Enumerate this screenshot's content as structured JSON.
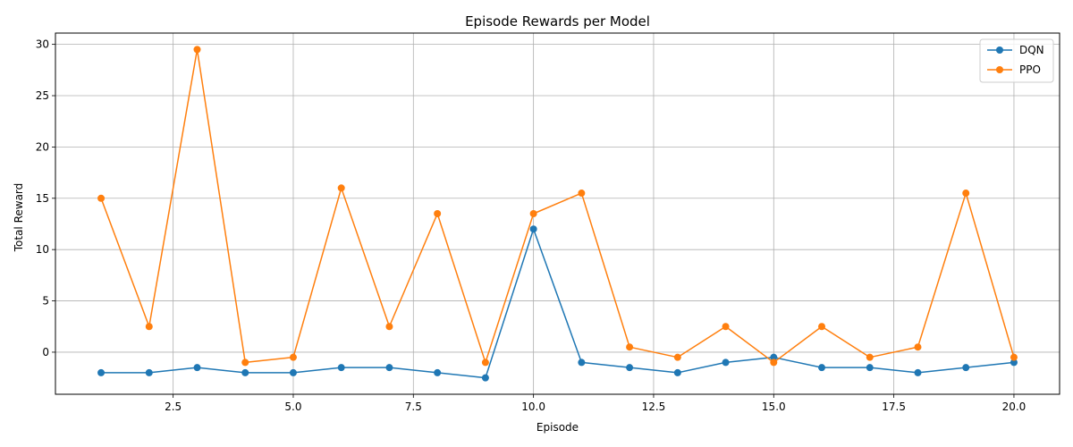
{
  "chart_data": {
    "type": "line",
    "title": "Episode Rewards per Model",
    "xlabel": "Episode",
    "ylabel": "Total Reward",
    "xlim": [
      0.05,
      20.95
    ],
    "ylim": [
      -4.1,
      31.1
    ],
    "xticks": [
      2.5,
      5.0,
      7.5,
      10.0,
      12.5,
      15.0,
      17.5,
      20.0
    ],
    "xtick_labels": [
      "2.5",
      "5.0",
      "7.5",
      "10.0",
      "12.5",
      "15.0",
      "17.5",
      "20.0"
    ],
    "yticks": [
      0,
      5,
      10,
      15,
      20,
      25,
      30
    ],
    "ytick_labels": [
      "0",
      "5",
      "10",
      "15",
      "20",
      "25",
      "30"
    ],
    "grid": true,
    "legend_position": "top-right",
    "x": [
      1,
      2,
      3,
      4,
      5,
      6,
      7,
      8,
      9,
      10,
      11,
      12,
      13,
      14,
      15,
      16,
      17,
      18,
      19,
      20
    ],
    "series": [
      {
        "name": "DQN",
        "color": "#1f77b4",
        "marker": "circle",
        "values": [
          -2,
          -2,
          -1.5,
          -2,
          -2,
          -1.5,
          -1.5,
          -2,
          -2.5,
          12,
          -1,
          -1.5,
          -2,
          -1,
          -0.5,
          -1.5,
          -1.5,
          -2,
          -1.5,
          -1
        ]
      },
      {
        "name": "PPO",
        "color": "#ff7f0e",
        "marker": "circle",
        "values": [
          15,
          2.5,
          29.5,
          -1,
          -0.5,
          16,
          2.5,
          13.5,
          -1,
          13.5,
          15.5,
          0.5,
          -0.5,
          2.5,
          -1,
          2.5,
          -0.5,
          0.5,
          15.5,
          -0.5
        ]
      }
    ]
  }
}
